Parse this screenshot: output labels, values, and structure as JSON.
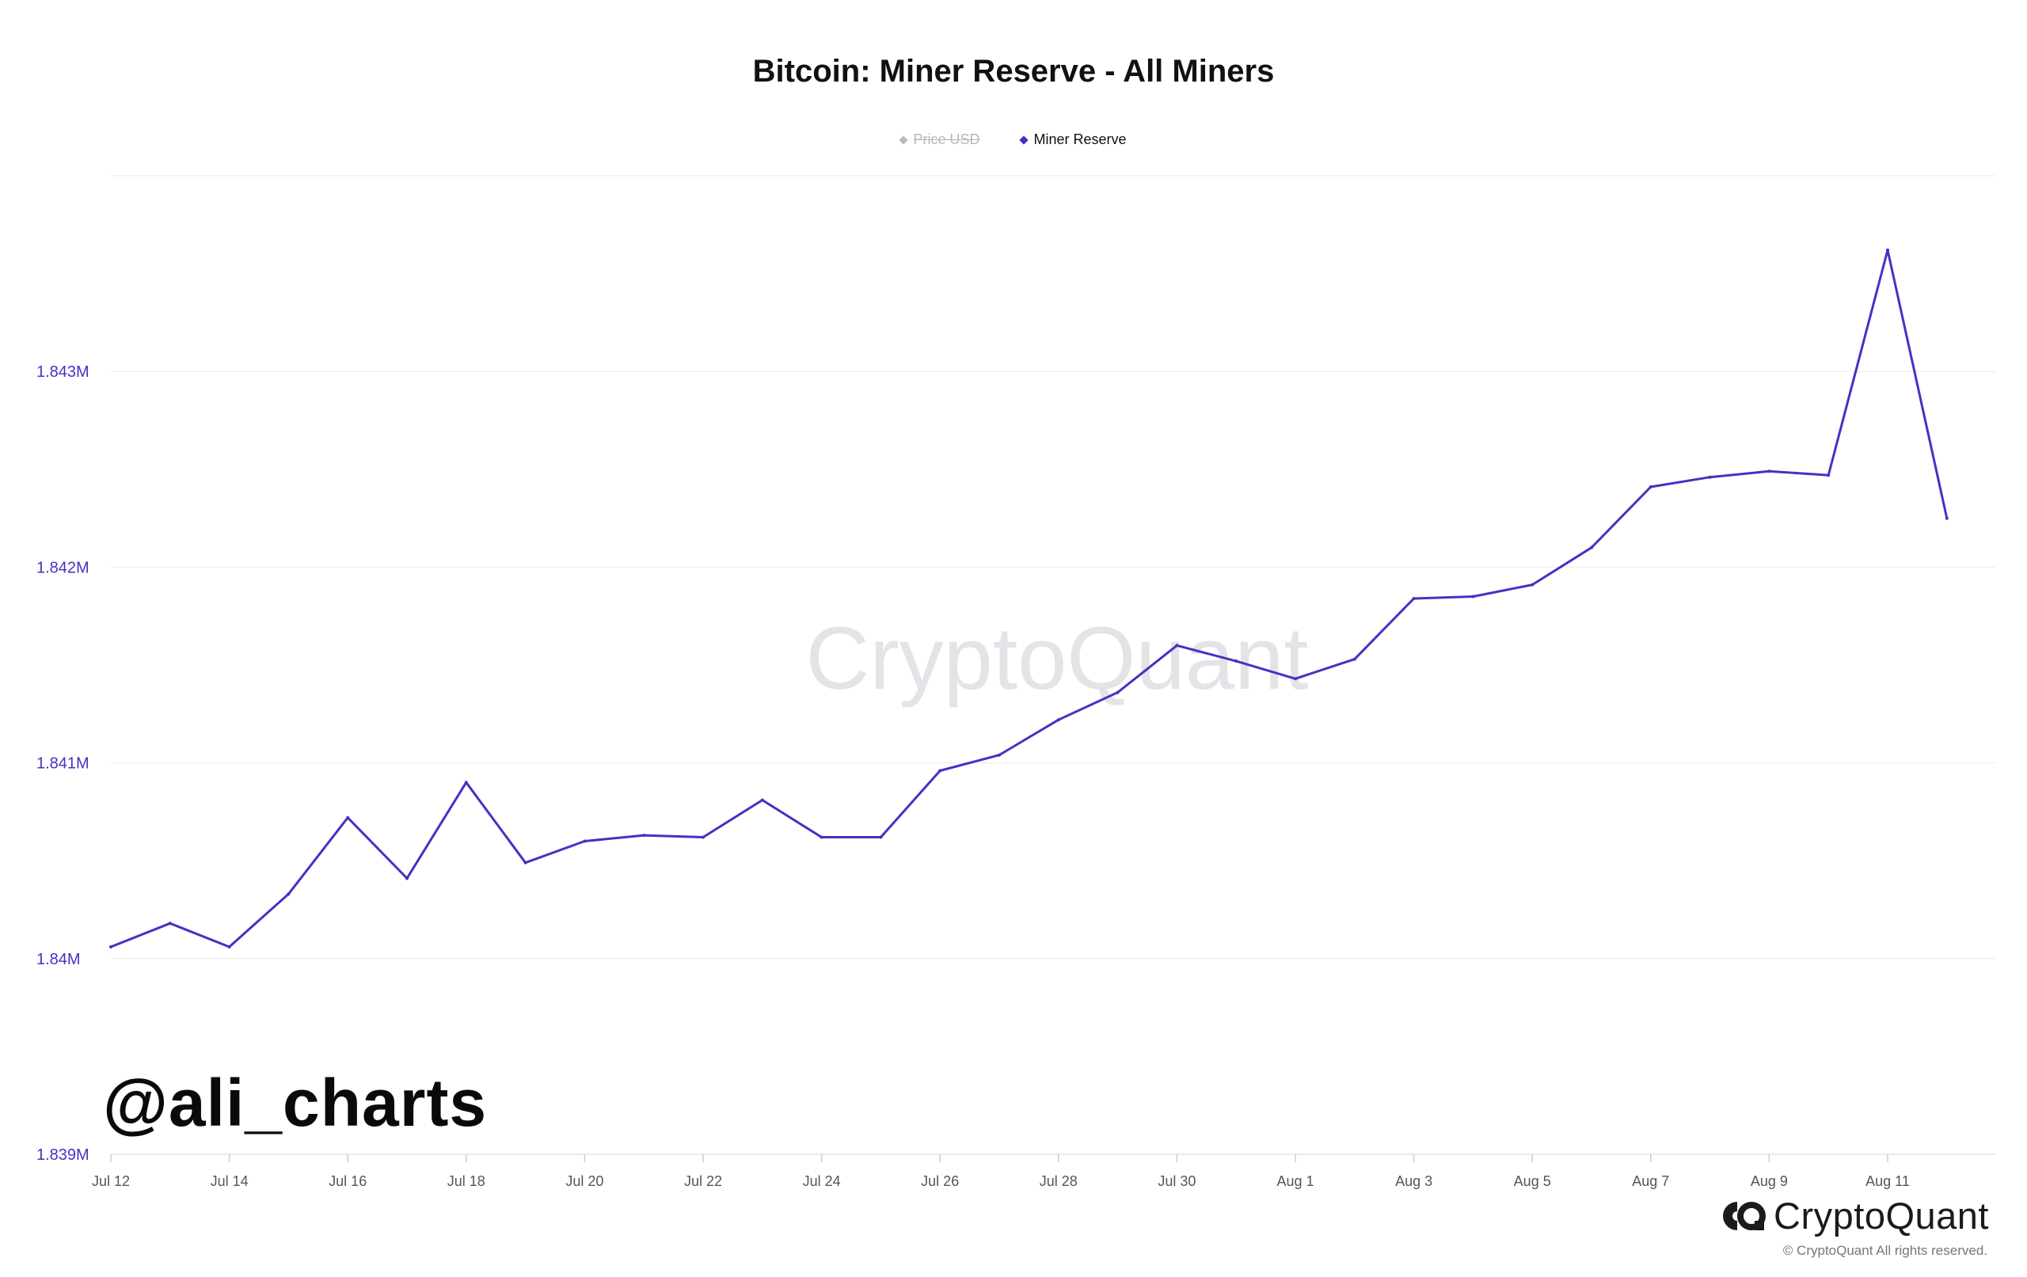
{
  "chart_data": {
    "type": "line",
    "title": "Bitcoin: Miner Reserve - All Miners",
    "legend": [
      {
        "name": "Price USD",
        "color": "#bbbbbb",
        "active": false
      },
      {
        "name": "Miner Reserve",
        "color": "#4b2ec4",
        "active": true
      }
    ],
    "x": [
      "Jul 12",
      "Jul 13",
      "Jul 14",
      "Jul 15",
      "Jul 16",
      "Jul 17",
      "Jul 18",
      "Jul 19",
      "Jul 20",
      "Jul 21",
      "Jul 22",
      "Jul 23",
      "Jul 24",
      "Jul 25",
      "Jul 26",
      "Jul 27",
      "Jul 28",
      "Jul 29",
      "Jul 30",
      "Jul 31",
      "Aug 1",
      "Aug 2",
      "Aug 3",
      "Aug 4",
      "Aug 5",
      "Aug 6",
      "Aug 7",
      "Aug 8",
      "Aug 9",
      "Aug 10",
      "Aug 11",
      "Aug 12"
    ],
    "x_tick_labels": [
      "Jul 12",
      "Jul 14",
      "Jul 16",
      "Jul 18",
      "Jul 20",
      "Jul 22",
      "Jul 24",
      "Jul 26",
      "Jul 28",
      "Jul 30",
      "Aug 1",
      "Aug 3",
      "Aug 5",
      "Aug 7",
      "Aug 9",
      "Aug 11"
    ],
    "series": [
      {
        "name": "Miner Reserve",
        "values": [
          1840060,
          1840180,
          1840060,
          1840330,
          1840720,
          1840410,
          1840900,
          1840490,
          1840600,
          1840630,
          1840620,
          1840810,
          1840620,
          1840620,
          1840960,
          1841040,
          1841220,
          1841360,
          1841600,
          1841520,
          1841430,
          1841530,
          1841840,
          1841850,
          1841910,
          1842100,
          1842410,
          1842460,
          1842490,
          1842470,
          1843620,
          1842250
        ]
      }
    ],
    "y_tick_values": [
      1839000,
      1840000,
      1841000,
      1842000,
      1843000
    ],
    "y_tick_labels": [
      "1.839M",
      "1.84M",
      "1.841M",
      "1.842M",
      "1.843M"
    ],
    "ylim": [
      1839000,
      1844000
    ],
    "grid": true,
    "legend_position": "top-center"
  },
  "watermark": "CryptoQuant",
  "handle": "@ali_charts",
  "brand": {
    "name": "CryptoQuant",
    "icon": "cryptoquant-logo-icon"
  },
  "copyright": "© CryptoQuant All rights reserved.",
  "colors": {
    "line": "#4b2ec4",
    "axis_label": "#4b2ec4",
    "grid": "#f0f0f0",
    "watermark": "#e4e4e8"
  }
}
